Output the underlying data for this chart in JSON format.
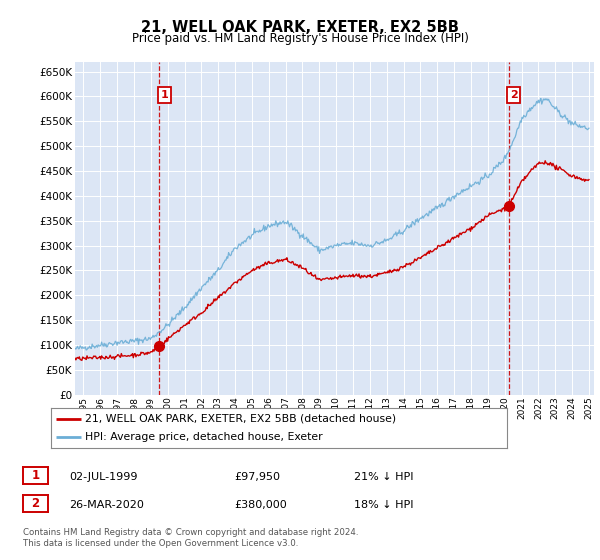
{
  "title": "21, WELL OAK PARK, EXETER, EX2 5BB",
  "subtitle": "Price paid vs. HM Land Registry's House Price Index (HPI)",
  "ylim": [
    0,
    670000
  ],
  "yticks": [
    0,
    50000,
    100000,
    150000,
    200000,
    250000,
    300000,
    350000,
    400000,
    450000,
    500000,
    550000,
    600000,
    650000
  ],
  "xlim_start": 1994.5,
  "xlim_end": 2025.3,
  "background_color": "#dce6f5",
  "grid_color": "#ffffff",
  "hpi_color": "#6baed6",
  "price_color": "#cc0000",
  "point1_date_x": 1999.5,
  "point1_y": 97950,
  "point2_date_x": 2020.23,
  "point2_y": 380000,
  "legend_line1": "21, WELL OAK PARK, EXETER, EX2 5BB (detached house)",
  "legend_line2": "HPI: Average price, detached house, Exeter",
  "annotation1_date": "02-JUL-1999",
  "annotation1_price": "£97,950",
  "annotation1_hpi": "21% ↓ HPI",
  "annotation2_date": "26-MAR-2020",
  "annotation2_price": "£380,000",
  "annotation2_hpi": "18% ↓ HPI",
  "footer": "Contains HM Land Registry data © Crown copyright and database right 2024.\nThis data is licensed under the Open Government Licence v3.0.",
  "hpi_control_x": [
    1994.5,
    1995,
    1996,
    1997,
    1998,
    1999,
    2000,
    2001,
    2002,
    2003,
    2004,
    2005,
    2006,
    2007,
    2008,
    2009,
    2010,
    2011,
    2012,
    2013,
    2014,
    2015,
    2016,
    2017,
    2018,
    2019,
    2020,
    2020.5,
    2021,
    2021.5,
    2022,
    2022.5,
    2023,
    2023.5,
    2024,
    2024.5,
    2025
  ],
  "hpi_control_y": [
    92000,
    95000,
    100000,
    105000,
    108000,
    113000,
    140000,
    175000,
    215000,
    250000,
    295000,
    320000,
    340000,
    348000,
    320000,
    290000,
    300000,
    305000,
    300000,
    310000,
    330000,
    355000,
    375000,
    400000,
    420000,
    440000,
    475000,
    510000,
    555000,
    575000,
    590000,
    595000,
    575000,
    560000,
    545000,
    540000,
    535000
  ],
  "price_control_x": [
    1994.5,
    1995,
    1996,
    1997,
    1998,
    1999,
    1999.5,
    2000,
    2001,
    2002,
    2003,
    2004,
    2005,
    2006,
    2007,
    2008,
    2009,
    2010,
    2011,
    2012,
    2013,
    2014,
    2015,
    2016,
    2017,
    2018,
    2019,
    2020,
    2020.23,
    2020.5,
    2021,
    2021.5,
    2022,
    2022.5,
    2023,
    2023.5,
    2024,
    2024.5,
    2025
  ],
  "price_control_y": [
    72000,
    73000,
    75000,
    77000,
    80000,
    85000,
    97950,
    112000,
    140000,
    165000,
    195000,
    225000,
    250000,
    265000,
    272000,
    255000,
    230000,
    235000,
    240000,
    238000,
    245000,
    258000,
    275000,
    295000,
    315000,
    335000,
    360000,
    375000,
    380000,
    395000,
    428000,
    448000,
    465000,
    468000,
    458000,
    450000,
    440000,
    435000,
    430000
  ]
}
